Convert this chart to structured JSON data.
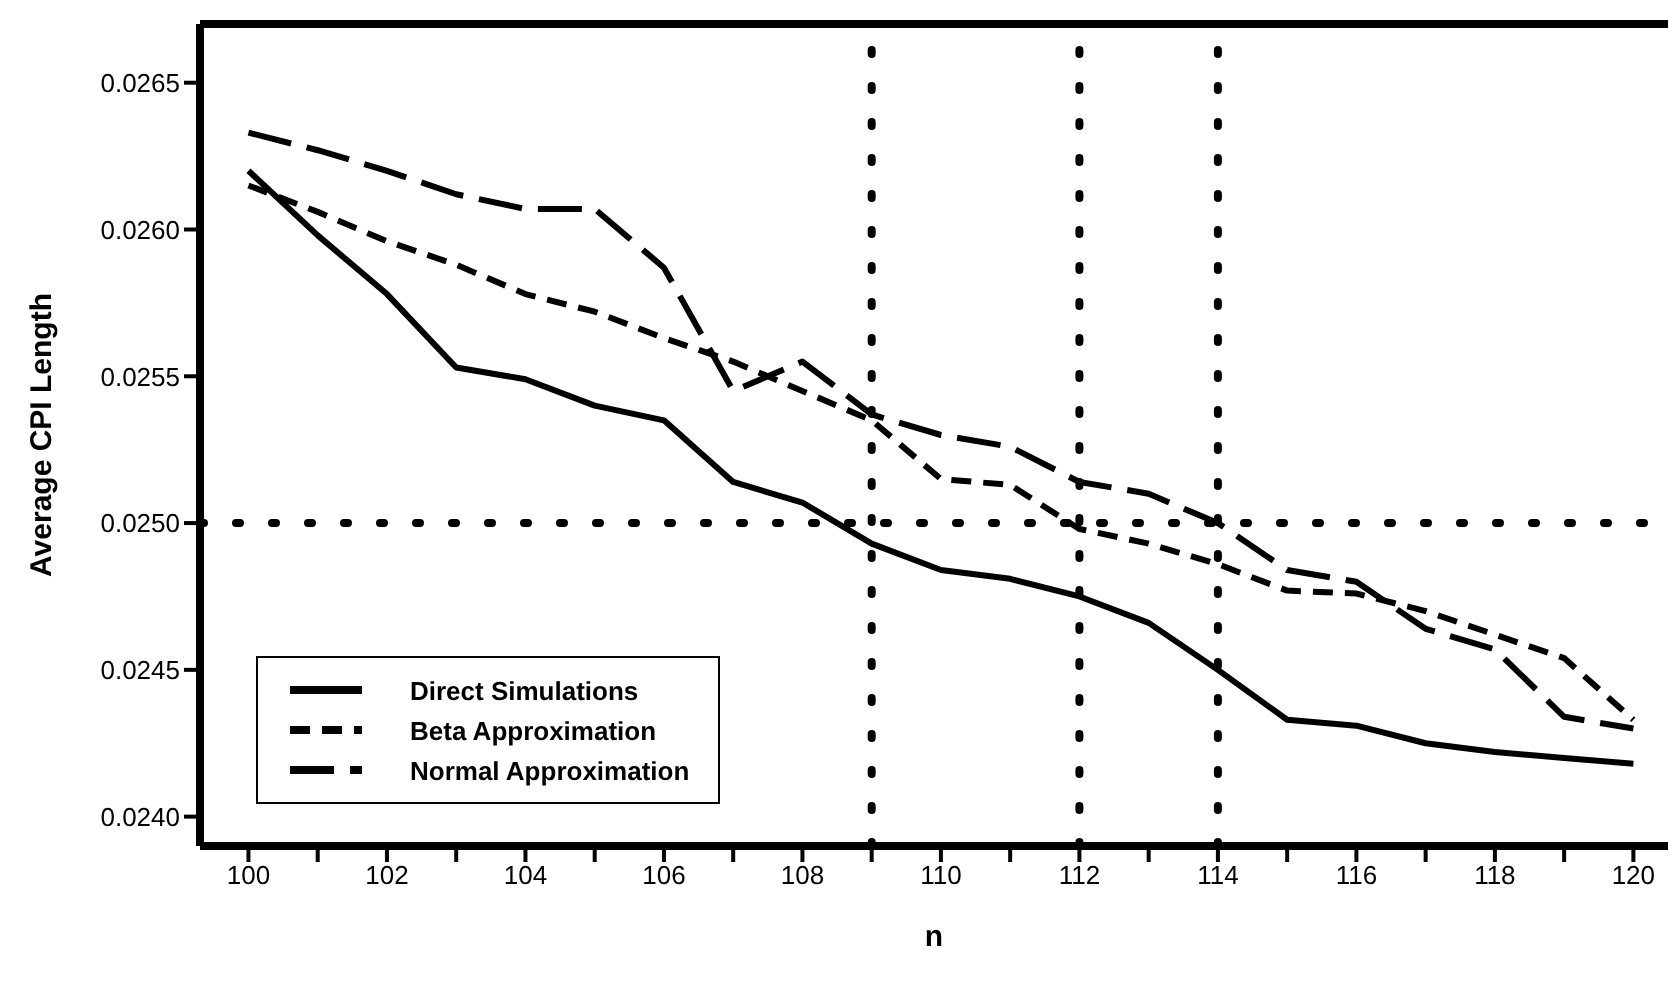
{
  "chart_data": {
    "type": "line",
    "xlabel": "n",
    "ylabel": "Average CPI Length",
    "x": [
      100,
      101,
      102,
      103,
      104,
      105,
      106,
      107,
      108,
      109,
      110,
      111,
      112,
      113,
      114,
      115,
      116,
      117,
      118,
      119,
      120
    ],
    "series": [
      {
        "name": "Direct Simulations",
        "color": "#000000",
        "line_style": "solid",
        "values": [
          0.0262,
          0.02598,
          0.02578,
          0.02553,
          0.02549,
          0.0254,
          0.02535,
          0.02514,
          0.02507,
          0.02493,
          0.02484,
          0.02481,
          0.02475,
          0.02466,
          0.0245,
          0.02433,
          0.02431,
          0.02425,
          0.02422,
          0.0242,
          0.02418
        ]
      },
      {
        "name": "Beta Approximation",
        "color": "#000000",
        "line_style": "dashed",
        "values": [
          0.02615,
          0.02606,
          0.02596,
          0.02588,
          0.02578,
          0.02572,
          0.02563,
          0.02555,
          0.02545,
          0.02535,
          0.02515,
          0.02513,
          0.02498,
          0.02493,
          0.02486,
          0.02477,
          0.02476,
          0.0247,
          0.02462,
          0.02454,
          0.02433
        ]
      },
      {
        "name": "Normal Approximation",
        "color": "#000000",
        "line_style": "longdash",
        "values": [
          0.02633,
          0.02627,
          0.0262,
          0.02612,
          0.02607,
          0.02607,
          0.02587,
          0.02545,
          0.02555,
          0.02537,
          0.0253,
          0.02526,
          0.02514,
          0.0251,
          0.025,
          0.02484,
          0.0248,
          0.02464,
          0.02457,
          0.02434,
          0.0243
        ]
      }
    ],
    "xlim": [
      99.3,
      120.5
    ],
    "xticks": [
      100,
      {
        "value": 101,
        "label": null
      },
      102,
      {
        "value": 103,
        "label": null
      },
      104,
      {
        "value": 105,
        "label": null
      },
      106,
      {
        "value": 107,
        "label": null
      },
      108,
      {
        "value": 109,
        "label": null
      },
      110,
      {
        "value": 111,
        "label": null
      },
      112,
      {
        "value": 113,
        "label": null
      },
      114,
      {
        "value": 115,
        "label": null
      },
      116,
      {
        "value": 117,
        "label": null
      },
      118,
      {
        "value": 119,
        "label": null
      },
      120
    ],
    "ylim": [
      0.0239,
      0.0267
    ],
    "yticks": [
      {
        "value": 0.024,
        "label": "0.0240"
      },
      0.0245,
      {
        "value": 0.025,
        "label": "0.0250"
      },
      0.0255,
      {
        "value": 0.026,
        "label": "0.0260"
      },
      0.0265
    ],
    "ref_lines": [
      {
        "axis": "x",
        "value": 109,
        "color": "#000000",
        "line_style": "dotted"
      },
      {
        "axis": "x",
        "value": 112,
        "color": "#000000",
        "line_style": "dotted"
      },
      {
        "axis": "x",
        "value": 114,
        "color": "#000000",
        "line_style": "dotted"
      },
      {
        "axis": "y",
        "value": 0.025,
        "color": "#000000",
        "line_style": "dotted"
      }
    ],
    "legend": "bottom left",
    "marker": "none"
  }
}
